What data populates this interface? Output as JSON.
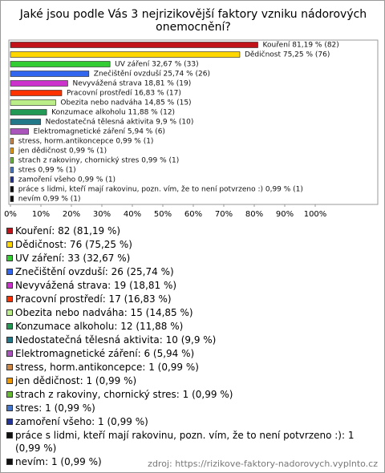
{
  "chart_data": {
    "type": "bar",
    "orientation": "horizontal",
    "title": "Jaké jsou podle Vás 3 nejrizikovější faktory vzniku nádorových onemocnění?",
    "values": [
      81.19,
      75.25,
      32.67,
      25.74,
      18.81,
      16.83,
      14.85,
      11.88,
      9.9,
      5.94,
      0.99,
      0.99,
      0.99,
      0.99,
      0.99,
      0.99,
      0.99
    ],
    "value_labels": [
      "Kouření 81,19 % (82)",
      "Dědičnost 75,25 % (76)",
      "UV záření 32,67 % (33)",
      "Znečištění ovzduší 25,74 % (26)",
      "Nevyvážená strava 18,81 % (19)",
      "Pracovní prostředí 16,83 % (17)",
      "Obezita nebo nadváha 14,85 % (15)",
      "Konzumace alkoholu 11,88 % (12)",
      "Nedostatečná tělesná aktivita 9,9 % (10)",
      "Elektromagnetické záření 5,94 % (6)",
      "stress, horm.antikoncepce 0,99 % (1)",
      "jen dědičnost 0,99 % (1)",
      "strach z rakoviny, chornický stres 0,99 % (1)",
      "stres 0,99 % (1)",
      "zamoření všeho 0,99 % (1)",
      "práce s lidmi, kteří mají rakovinu, pozn. vím, že to není potvrzeno :) 0,99 % (1)",
      "nevím 0,99 % (1)"
    ],
    "legend_labels": [
      "Kouření: 82 (81,19 %)",
      "Dědičnost: 76 (75,25 %)",
      "UV záření: 33 (32,67 %)",
      "Znečištění ovzduší: 26 (25,74 %)",
      "Nevyvážená strava: 19 (18,81 %)",
      "Pracovní prostředí: 17 (16,83 %)",
      "Obezita nebo nadváha: 15 (14,85 %)",
      "Konzumace alkoholu: 12 (11,88 %)",
      "Nedostatečná tělesná aktivita: 10 (9,9 %)",
      "Elektromagnetické záření: 6 (5,94 %)",
      "stress, horm.antikoncepce: 1 (0,99 %)",
      "jen dědičnost: 1 (0,99 %)",
      "strach z rakoviny, chornický stres: 1 (0,99 %)",
      "stres: 1 (0,99 %)",
      "zamoření všeho: 1 (0,99 %)",
      "práce s lidmi, kteří mají rakovinu, pozn. vím, že to není potvrzeno :): 1 (0,99 %)",
      "nevím: 1 (0,99 %)"
    ],
    "colors": [
      "#c0141a",
      "#ffd700",
      "#33cc33",
      "#3366ee",
      "#cc33cc",
      "#ff3300",
      "#bbee88",
      "#229955",
      "#227788",
      "#aa55bb",
      "#cc8844",
      "#ee9900",
      "#66bb33",
      "#4477cc",
      "#223399",
      "#111111",
      "#111111"
    ],
    "xlim": [
      0,
      100
    ],
    "xticks": [
      {
        "value": 0,
        "label": "0%"
      },
      {
        "value": 10,
        "label": "10%"
      },
      {
        "value": 20,
        "label": "20%"
      },
      {
        "value": 30,
        "label": "30%"
      },
      {
        "value": 40,
        "label": "40%"
      },
      {
        "value": 50,
        "label": "50%"
      },
      {
        "value": 60,
        "label": "60%"
      },
      {
        "value": 70,
        "label": "70%"
      },
      {
        "value": 80,
        "label": "80%"
      },
      {
        "value": 90,
        "label": "90%"
      },
      {
        "value": 100,
        "label": "100%"
      }
    ],
    "source": "zdroj: https://rizikove-faktory-nadorovych.vyplnto.cz"
  }
}
